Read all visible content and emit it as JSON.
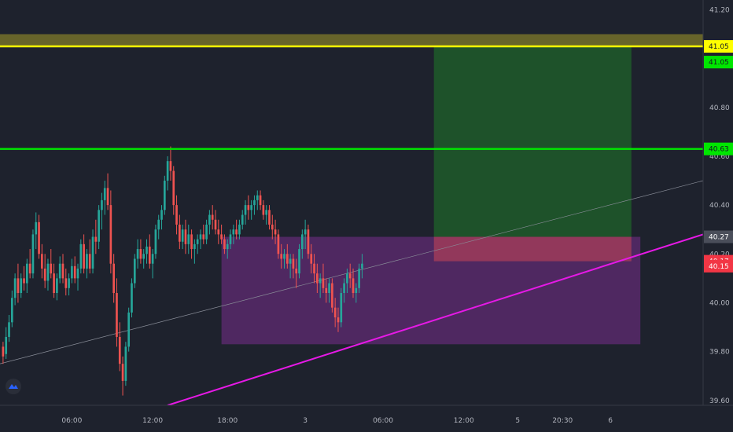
{
  "chart_data": {
    "type": "candlestick",
    "y_ticks": [
      "41.20",
      "41.05",
      "40.80",
      "40.60",
      "40.40",
      "40.20",
      "40.00",
      "39.80",
      "39.60"
    ],
    "y_tick_values": [
      41.2,
      41.05,
      40.8,
      40.6,
      40.4,
      40.2,
      40.0,
      39.8,
      39.6
    ],
    "x_ticks": [
      {
        "label": "06:00",
        "bar": 23
      },
      {
        "label": "12:00",
        "bar": 50
      },
      {
        "label": "18:00",
        "bar": 75
      },
      {
        "label": "3",
        "bar": 101
      },
      {
        "label": "06:00",
        "bar": 127
      },
      {
        "label": "12:00",
        "bar": 154
      },
      {
        "label": "5",
        "bar": 172
      },
      {
        "label": "20:30",
        "bar": 187
      },
      {
        "label": "6",
        "bar": 203
      }
    ],
    "ylim": [
      39.58,
      41.24
    ],
    "bars_total": 235,
    "candles": [
      [
        39.82,
        39.84,
        39.75,
        39.78
      ],
      [
        39.79,
        39.9,
        39.77,
        39.86
      ],
      [
        39.86,
        39.95,
        39.84,
        39.92
      ],
      [
        39.92,
        40.05,
        39.9,
        40.02
      ],
      [
        40.02,
        40.12,
        39.99,
        40.1
      ],
      [
        40.1,
        40.16,
        40.0,
        40.04
      ],
      [
        40.04,
        40.12,
        40.02,
        40.1
      ],
      [
        40.1,
        40.15,
        40.05,
        40.08
      ],
      [
        40.08,
        40.18,
        40.04,
        40.16
      ],
      [
        40.16,
        40.22,
        40.1,
        40.12
      ],
      [
        40.12,
        40.3,
        40.1,
        40.28
      ],
      [
        40.28,
        40.37,
        40.22,
        40.33
      ],
      [
        40.33,
        40.36,
        40.18,
        40.2
      ],
      [
        40.2,
        40.24,
        40.1,
        40.14
      ],
      [
        40.14,
        40.2,
        40.06,
        40.09
      ],
      [
        40.09,
        40.18,
        40.05,
        40.16
      ],
      [
        40.16,
        40.22,
        40.1,
        40.12
      ],
      [
        40.12,
        40.16,
        40.02,
        40.04
      ],
      [
        40.04,
        40.12,
        40.01,
        40.1
      ],
      [
        40.1,
        40.19,
        40.08,
        40.16
      ],
      [
        40.16,
        40.2,
        40.08,
        40.1
      ],
      [
        40.1,
        40.14,
        40.03,
        40.06
      ],
      [
        40.06,
        40.12,
        40.03,
        40.1
      ],
      [
        40.1,
        40.18,
        40.08,
        40.15
      ],
      [
        40.15,
        40.19,
        40.08,
        40.1
      ],
      [
        40.1,
        40.16,
        40.05,
        40.14
      ],
      [
        40.14,
        40.26,
        40.12,
        40.24
      ],
      [
        40.24,
        40.28,
        40.12,
        40.14
      ],
      [
        40.14,
        40.22,
        40.1,
        40.2
      ],
      [
        40.2,
        40.26,
        40.12,
        40.14
      ],
      [
        40.14,
        40.3,
        40.12,
        40.27
      ],
      [
        40.27,
        40.34,
        40.2,
        40.25
      ],
      [
        40.25,
        40.4,
        40.22,
        40.38
      ],
      [
        40.38,
        40.45,
        40.3,
        40.42
      ],
      [
        40.42,
        40.5,
        40.36,
        40.47
      ],
      [
        40.47,
        40.53,
        40.38,
        40.4
      ],
      [
        40.4,
        40.46,
        40.12,
        40.16
      ],
      [
        40.16,
        40.2,
        40.0,
        40.04
      ],
      [
        40.04,
        40.1,
        39.82,
        39.86
      ],
      [
        39.86,
        39.92,
        39.72,
        39.75
      ],
      [
        39.75,
        39.78,
        39.62,
        39.68
      ],
      [
        39.68,
        39.84,
        39.66,
        39.82
      ],
      [
        39.82,
        39.98,
        39.8,
        39.96
      ],
      [
        39.96,
        40.1,
        39.94,
        40.08
      ],
      [
        40.08,
        40.2,
        40.06,
        40.18
      ],
      [
        40.18,
        40.26,
        40.14,
        40.22
      ],
      [
        40.22,
        40.26,
        40.16,
        40.18
      ],
      [
        40.18,
        40.22,
        40.14,
        40.2
      ],
      [
        40.2,
        40.26,
        40.16,
        40.23
      ],
      [
        40.23,
        40.28,
        40.14,
        40.16
      ],
      [
        40.16,
        40.22,
        40.1,
        40.2
      ],
      [
        40.2,
        40.32,
        40.18,
        40.3
      ],
      [
        40.3,
        40.36,
        40.26,
        40.34
      ],
      [
        40.34,
        40.4,
        40.3,
        40.38
      ],
      [
        40.38,
        40.52,
        40.36,
        40.5
      ],
      [
        40.5,
        40.6,
        40.46,
        40.58
      ],
      [
        40.58,
        40.64,
        40.5,
        40.54
      ],
      [
        40.54,
        40.56,
        40.36,
        40.4
      ],
      [
        40.4,
        40.44,
        40.28,
        40.32
      ],
      [
        40.32,
        40.36,
        40.22,
        40.25
      ],
      [
        40.25,
        40.32,
        40.22,
        40.3
      ],
      [
        40.3,
        40.34,
        40.2,
        40.24
      ],
      [
        40.24,
        40.32,
        40.2,
        40.28
      ],
      [
        40.28,
        40.3,
        40.18,
        40.22
      ],
      [
        40.22,
        40.26,
        40.16,
        40.24
      ],
      [
        40.24,
        40.28,
        40.2,
        40.26
      ],
      [
        40.26,
        40.3,
        40.22,
        40.28
      ],
      [
        40.28,
        40.32,
        40.24,
        40.26
      ],
      [
        40.26,
        40.34,
        40.24,
        40.32
      ],
      [
        40.32,
        40.38,
        40.28,
        40.36
      ],
      [
        40.36,
        40.4,
        40.3,
        40.34
      ],
      [
        40.34,
        40.38,
        40.28,
        40.3
      ],
      [
        40.3,
        40.34,
        40.24,
        40.28
      ],
      [
        40.28,
        40.32,
        40.24,
        40.26
      ],
      [
        40.26,
        40.28,
        40.2,
        40.22
      ],
      [
        40.22,
        40.26,
        40.18,
        40.24
      ],
      [
        40.24,
        40.3,
        40.22,
        40.28
      ],
      [
        40.28,
        40.32,
        40.24,
        40.3
      ],
      [
        40.3,
        40.34,
        40.26,
        40.28
      ],
      [
        40.28,
        40.34,
        40.26,
        40.32
      ],
      [
        40.32,
        40.38,
        40.3,
        40.36
      ],
      [
        40.36,
        40.42,
        40.32,
        40.4
      ],
      [
        40.4,
        40.44,
        40.34,
        40.38
      ],
      [
        40.38,
        40.42,
        40.34,
        40.4
      ],
      [
        40.4,
        40.44,
        40.36,
        40.42
      ],
      [
        40.42,
        40.46,
        40.38,
        40.44
      ],
      [
        40.44,
        40.46,
        40.38,
        40.4
      ],
      [
        40.4,
        40.42,
        40.34,
        40.36
      ],
      [
        40.36,
        40.4,
        40.32,
        40.38
      ],
      [
        40.38,
        40.4,
        40.3,
        40.32
      ],
      [
        40.32,
        40.36,
        40.26,
        40.3
      ],
      [
        40.3,
        40.34,
        40.24,
        40.28
      ],
      [
        40.28,
        40.3,
        40.18,
        40.2
      ],
      [
        40.2,
        40.24,
        40.14,
        40.18
      ],
      [
        40.18,
        40.22,
        40.14,
        40.2
      ],
      [
        40.2,
        40.24,
        40.14,
        40.16
      ],
      [
        40.16,
        40.2,
        40.1,
        40.18
      ],
      [
        40.18,
        40.2,
        40.1,
        40.14
      ],
      [
        40.14,
        40.18,
        40.06,
        40.12
      ],
      [
        40.12,
        40.24,
        40.1,
        40.22
      ],
      [
        40.22,
        40.3,
        40.18,
        40.28
      ],
      [
        40.28,
        40.34,
        40.22,
        40.3
      ],
      [
        40.3,
        40.32,
        40.18,
        40.2
      ],
      [
        40.2,
        40.24,
        40.12,
        40.16
      ],
      [
        40.16,
        40.2,
        40.08,
        40.12
      ],
      [
        40.12,
        40.16,
        40.04,
        40.08
      ],
      [
        40.08,
        40.12,
        40.02,
        40.1
      ],
      [
        40.1,
        40.16,
        40.04,
        40.06
      ],
      [
        40.06,
        40.1,
        40.0,
        40.04
      ],
      [
        40.04,
        40.1,
        40.0,
        40.08
      ],
      [
        40.08,
        40.1,
        39.96,
        39.98
      ],
      [
        39.98,
        40.02,
        39.9,
        39.94
      ],
      [
        39.94,
        39.98,
        39.88,
        39.92
      ],
      [
        39.92,
        40.06,
        39.9,
        40.04
      ],
      [
        40.04,
        40.1,
        40.0,
        40.08
      ],
      [
        40.08,
        40.14,
        40.04,
        40.12
      ],
      [
        40.12,
        40.16,
        40.06,
        40.1
      ],
      [
        40.1,
        40.14,
        40.02,
        40.04
      ],
      [
        40.04,
        40.08,
        40.0,
        40.06
      ],
      [
        40.06,
        40.16,
        40.04,
        40.14
      ],
      [
        40.14,
        40.2,
        40.1,
        40.16
      ]
    ],
    "levels": [
      {
        "price": 41.05,
        "label": "41.05",
        "color": "#ffff00"
      },
      {
        "price": 40.63,
        "label": "40.63",
        "color": "#00e600"
      }
    ],
    "price_badges": [
      {
        "price": 41.05,
        "label": "41.05",
        "bg": "#ffff00",
        "fg": "#131722"
      },
      {
        "price": 41.05,
        "label": "41.05",
        "bg": "#00e600",
        "fg": "#131722",
        "offset": 20
      },
      {
        "price": 40.63,
        "label": "40.63",
        "bg": "#00e600",
        "fg": "#131722"
      },
      {
        "price": 40.27,
        "label": "40.27",
        "bg": "#4a4e5a",
        "fg": "#ffffff"
      },
      {
        "price": 40.17,
        "label": "40.17",
        "bg": "#f23645",
        "fg": "#ffffff"
      },
      {
        "price": 40.15,
        "label": "40.15",
        "bg": "#f23645",
        "fg": "#ffffff"
      }
    ],
    "colors": {
      "background": "#1e222d",
      "up": "#26a69a",
      "down": "#ef5350",
      "resistance_zone": "#807b2a",
      "take_profit_zone": "#1e5a2a",
      "stop_loss_zone": "#a23c5a",
      "demand_zone": "#5b2a6e",
      "trendline": "#e619e6"
    }
  }
}
